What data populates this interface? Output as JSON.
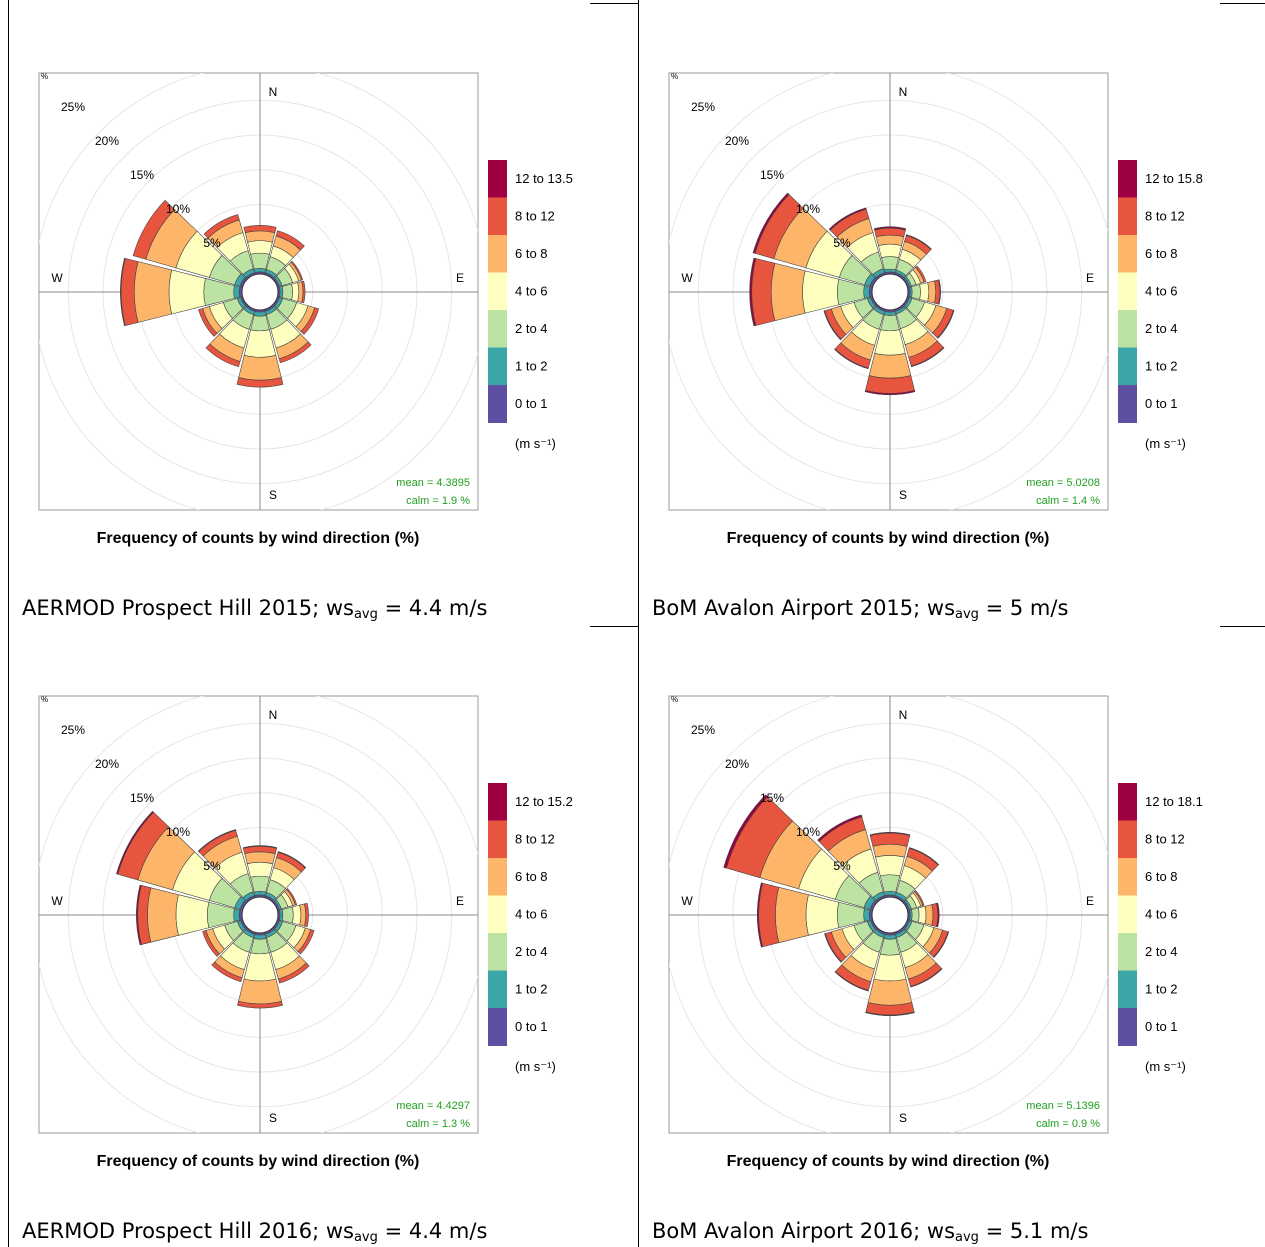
{
  "legend_colors": {
    "0 to 1": "#5e4fa2",
    "1 to 2": "#3aa6a8",
    "2 to 4": "#bde3a2",
    "4 to 6": "#fefebf",
    "6 to 8": "#fdb669",
    "8 to 12": "#e8553f",
    "12 to max": "#9e0142"
  },
  "chart_data": [
    {
      "type": "windrose",
      "title": "Frequency of counts by wind direction (%)",
      "y_unit": "%",
      "radial_ticks": [
        "5%",
        "10%",
        "15%",
        "20%",
        "25%"
      ],
      "compass": [
        "N",
        "E",
        "S",
        "W"
      ],
      "legend_title": "(m s⁻¹)",
      "legend": [
        "12 to 13.5",
        "8 to 12",
        "6 to 8",
        "4 to 6",
        "2 to 4",
        "1 to 2",
        "0 to 1"
      ],
      "mean_label": "mean  =  4.3895",
      "calm_label": "calm =  1.9 %",
      "caption": {
        "prefix": "AERMOD Prospect Hill 2015; ws",
        "sub": "avg",
        "suffix": " = 4.4 m/s"
      },
      "directions": [
        0,
        30,
        60,
        90,
        120,
        150,
        180,
        210,
        240,
        270,
        300,
        330
      ],
      "series_names": [
        "0 to 1",
        "1 to 2",
        "2 to 4",
        "4 to 6",
        "6 to 8",
        "8 to 12",
        "12 to 13.5"
      ],
      "cumulative_percent": [
        [
          0.3,
          0.8,
          3.0,
          4.8,
          6.2,
          7.0,
          7.0
        ],
        [
          0.3,
          0.8,
          2.7,
          4.3,
          5.8,
          6.6,
          6.6
        ],
        [
          0.3,
          0.7,
          2.3,
          3.2,
          3.6,
          3.8,
          3.8
        ],
        [
          0.3,
          0.7,
          2.1,
          3.0,
          3.6,
          3.9,
          3.9
        ],
        [
          0.3,
          0.8,
          2.9,
          4.6,
          5.6,
          6.2,
          6.2
        ],
        [
          0.3,
          0.8,
          3.0,
          5.8,
          7.4,
          8.0,
          8.0
        ],
        [
          0.3,
          0.9,
          3.0,
          6.8,
          10.1,
          11.1,
          11.1
        ],
        [
          0.3,
          0.8,
          3.0,
          5.8,
          7.8,
          8.6,
          8.6
        ],
        [
          0.3,
          0.8,
          2.9,
          5.0,
          6.0,
          6.6,
          6.6
        ],
        [
          0.4,
          1.2,
          5.5,
          10.5,
          15.5,
          17.4,
          17.5
        ],
        [
          0.4,
          1.2,
          5.0,
          10.0,
          14.5,
          16.4,
          16.4
        ],
        [
          0.3,
          0.9,
          3.6,
          6.3,
          8.2,
          9.0,
          9.0
        ]
      ]
    },
    {
      "type": "windrose",
      "title": "Frequency of counts by wind direction (%)",
      "y_unit": "%",
      "radial_ticks": [
        "5%",
        "10%",
        "15%",
        "20%",
        "25%"
      ],
      "compass": [
        "N",
        "E",
        "S",
        "W"
      ],
      "legend_title": "(m s⁻¹)",
      "legend": [
        "12 to 15.8",
        "8 to 12",
        "6 to 8",
        "4 to 6",
        "2 to 4",
        "1 to 2",
        "0 to 1"
      ],
      "mean_label": "mean  =  5.0208",
      "calm_label": "calm =  1.4 %",
      "caption": {
        "prefix": "BoM Avalon Airport 2015; ws",
        "sub": "avg",
        "suffix": " = 5 m/s"
      },
      "directions": [
        0,
        30,
        60,
        90,
        120,
        150,
        180,
        210,
        240,
        270,
        300,
        330
      ],
      "series_names": [
        "0 to 1",
        "1 to 2",
        "2 to 4",
        "4 to 6",
        "6 to 8",
        "8 to 12",
        "12 to 15.8"
      ],
      "cumulative_percent": [
        [
          0.3,
          0.7,
          2.5,
          4.3,
          5.6,
          6.6,
          6.8
        ],
        [
          0.3,
          0.7,
          2.3,
          3.8,
          5.0,
          5.9,
          6.0
        ],
        [
          0.3,
          0.6,
          1.3,
          2.0,
          2.5,
          2.8,
          2.8
        ],
        [
          0.3,
          0.6,
          1.8,
          3.0,
          4.0,
          4.6,
          4.7
        ],
        [
          0.3,
          0.7,
          2.6,
          4.3,
          5.9,
          6.9,
          7.0
        ],
        [
          0.3,
          0.7,
          2.9,
          5.3,
          7.2,
          8.5,
          8.6
        ],
        [
          0.3,
          0.8,
          3.0,
          6.5,
          9.8,
          12.0,
          12.2
        ],
        [
          0.3,
          0.8,
          3.0,
          5.4,
          7.6,
          8.8,
          8.9
        ],
        [
          0.3,
          0.8,
          2.8,
          4.8,
          6.2,
          7.2,
          7.3
        ],
        [
          0.4,
          1.2,
          5.0,
          10.0,
          14.5,
          17.3,
          17.6
        ],
        [
          0.4,
          1.2,
          5.0,
          10.0,
          14.8,
          17.6,
          17.9
        ],
        [
          0.3,
          0.9,
          3.4,
          6.3,
          8.4,
          9.8,
          10.0
        ]
      ]
    },
    {
      "type": "windrose",
      "title": "Frequency of counts by wind direction (%)",
      "y_unit": "%",
      "radial_ticks": [
        "5%",
        "10%",
        "15%",
        "20%",
        "25%"
      ],
      "compass": [
        "N",
        "E",
        "S",
        "W"
      ],
      "legend_title": "(m s⁻¹)",
      "legend": [
        "12 to 15.2",
        "8 to 12",
        "6 to 8",
        "4 to 6",
        "2 to 4",
        "1 to 2",
        "0 to 1"
      ],
      "mean_label": "mean  =  4.4297",
      "calm_label": "calm =  1.3 %",
      "caption": {
        "prefix": "AERMOD Prospect Hill 2016; ws",
        "sub": "avg",
        "suffix": " = 4.4 m/s"
      },
      "directions": [
        0,
        30,
        60,
        90,
        120,
        150,
        180,
        210,
        240,
        270,
        300,
        330
      ],
      "series_names": [
        "0 to 1",
        "1 to 2",
        "2 to 4",
        "4 to 6",
        "6 to 8",
        "8 to 12",
        "12 to 15.2"
      ],
      "cumulative_percent": [
        [
          0.3,
          0.8,
          3.0,
          5.0,
          6.5,
          7.3,
          7.4
        ],
        [
          0.3,
          0.8,
          2.7,
          4.5,
          6.0,
          6.8,
          6.9
        ],
        [
          0.3,
          0.6,
          1.6,
          2.3,
          2.7,
          2.9,
          2.9
        ],
        [
          0.3,
          0.7,
          2.2,
          3.3,
          4.0,
          4.4,
          4.4
        ],
        [
          0.3,
          0.8,
          2.8,
          4.2,
          5.0,
          5.5,
          5.5
        ],
        [
          0.3,
          0.8,
          3.0,
          5.6,
          7.0,
          7.6,
          7.6
        ],
        [
          0.3,
          0.9,
          3.0,
          6.9,
          10.2,
          10.8,
          10.8
        ],
        [
          0.3,
          0.8,
          3.0,
          5.6,
          6.8,
          7.4,
          7.4
        ],
        [
          0.3,
          0.8,
          2.7,
          4.5,
          5.5,
          6.0,
          6.0
        ],
        [
          0.4,
          1.2,
          5.0,
          9.5,
          13.6,
          15.0,
          15.2
        ],
        [
          0.4,
          1.2,
          5.0,
          10.5,
          15.7,
          18.7,
          18.9
        ],
        [
          0.3,
          0.9,
          3.6,
          6.8,
          9.2,
          10.1,
          10.2
        ]
      ]
    },
    {
      "type": "windrose",
      "title": "Frequency of counts by wind direction (%)",
      "y_unit": "%",
      "radial_ticks": [
        "5%",
        "10%",
        "15%",
        "20%",
        "25%"
      ],
      "compass": [
        "N",
        "E",
        "S",
        "W"
      ],
      "legend_title": "(m s⁻¹)",
      "legend": [
        "12 to 18.1",
        "8 to 12",
        "6 to 8",
        "4 to 6",
        "2 to 4",
        "1 to 2",
        "0 to 1"
      ],
      "mean_label": "mean  =  5.1396",
      "calm_label": "calm =  0.9 %",
      "caption": {
        "prefix": "BoM Avalon Airport 2016; ws",
        "sub": "avg",
        "suffix": " = 5.1 m/s"
      },
      "directions": [
        0,
        30,
        60,
        90,
        120,
        150,
        180,
        210,
        240,
        270,
        300,
        330
      ],
      "series_names": [
        "0 to 1",
        "1 to 2",
        "2 to 4",
        "4 to 6",
        "6 to 8",
        "8 to 12",
        "12 to 18.1"
      ],
      "cumulative_percent": [
        [
          0.3,
          0.8,
          3.2,
          6.0,
          7.6,
          9.2,
          9.3
        ],
        [
          0.3,
          0.8,
          2.6,
          4.8,
          6.2,
          7.4,
          7.5
        ],
        [
          0.3,
          0.6,
          1.4,
          2.0,
          2.3,
          2.5,
          2.5
        ],
        [
          0.3,
          0.6,
          1.6,
          2.6,
          3.6,
          4.3,
          4.5
        ],
        [
          0.3,
          0.7,
          2.5,
          4.0,
          5.3,
          6.1,
          6.2
        ],
        [
          0.3,
          0.8,
          3.0,
          5.3,
          7.0,
          8.1,
          8.2
        ],
        [
          0.3,
          0.9,
          3.2,
          6.9,
          10.4,
          11.8,
          11.9
        ],
        [
          0.3,
          0.8,
          3.0,
          5.5,
          7.4,
          8.7,
          8.8
        ],
        [
          0.3,
          0.8,
          2.8,
          4.6,
          6.2,
          7.1,
          7.2
        ],
        [
          0.4,
          1.2,
          5.0,
          9.5,
          13.9,
          16.3,
          16.5
        ],
        [
          0.4,
          1.3,
          5.6,
          11.1,
          16.9,
          21.9,
          22.3
        ],
        [
          0.3,
          0.9,
          3.8,
          7.3,
          10.2,
          12.1,
          12.4
        ]
      ]
    }
  ]
}
